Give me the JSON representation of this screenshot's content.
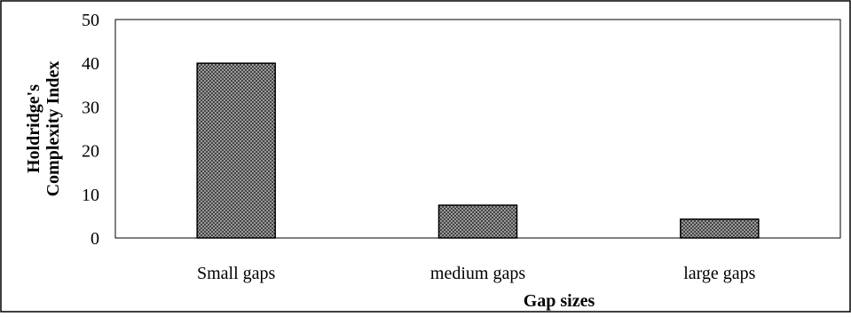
{
  "chart_data": {
    "type": "bar",
    "categories": [
      "Small gaps",
      "medium gaps",
      "large gaps"
    ],
    "values": [
      40,
      7.5,
      4.3
    ],
    "xlabel": "Gap sizes",
    "ylabel": [
      "Holdridge's",
      "Complexity Index"
    ],
    "ylim": [
      0,
      50
    ],
    "yticks": [
      0,
      10,
      20,
      30,
      40,
      50
    ],
    "grid": false,
    "legend": "none",
    "bar_color": "#444444",
    "bar_pattern_color": "#9a9a9a",
    "axis_color": "#000000"
  }
}
